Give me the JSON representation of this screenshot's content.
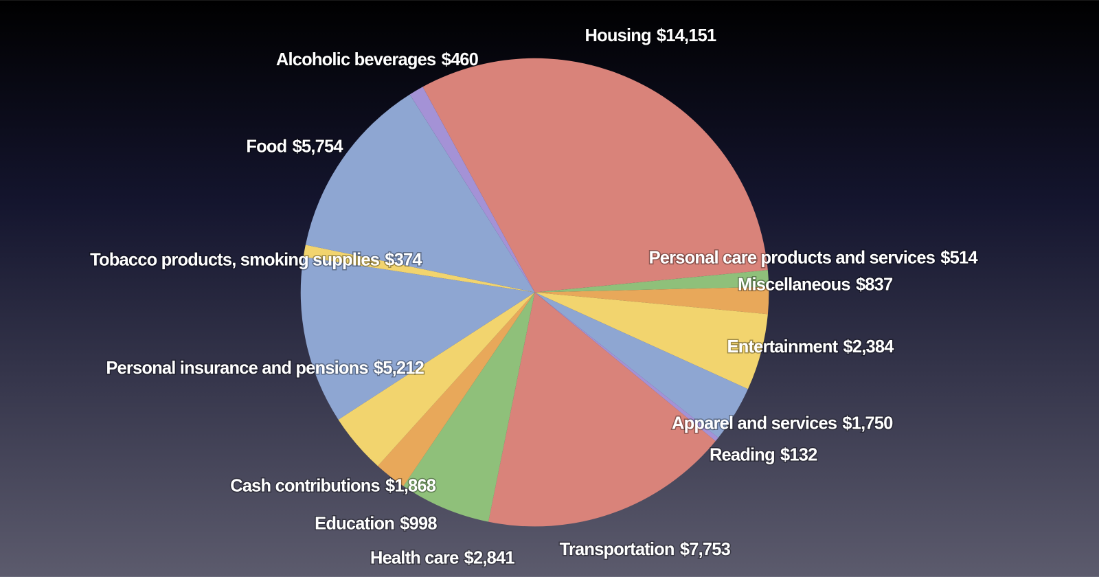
{
  "chart_data": {
    "type": "pie",
    "categories": [
      "Housing",
      "Personal care products and services",
      "Miscellaneous",
      "Entertainment",
      "Apparel and services",
      "Reading",
      "Transportation",
      "Health care",
      "Education",
      "Cash contributions",
      "Personal insurance and pensions",
      "Tobacco products, smoking supplies",
      "Food",
      "Alcoholic beverages"
    ],
    "values": [
      14151,
      514,
      837,
      2384,
      1750,
      132,
      7753,
      2841,
      998,
      1868,
      5212,
      374,
      5754,
      460
    ],
    "value_labels": [
      "$14,151",
      "$514",
      "$837",
      "$2,384",
      "$1,750",
      "$132",
      "$7,753",
      "$2,841",
      "$998",
      "$1,868",
      "$5,212",
      "$374",
      "$5,754",
      "$460"
    ],
    "colors": [
      "#d9837a",
      "#8fc07a",
      "#e8a85a",
      "#f2d46e",
      "#8ea6d2",
      "#a492d6",
      "#d9837a",
      "#8fc07a",
      "#e8a85a",
      "#f2d46e",
      "#8ea6d2",
      "#f2d46e",
      "#8ea6d2",
      "#a492d6"
    ]
  }
}
